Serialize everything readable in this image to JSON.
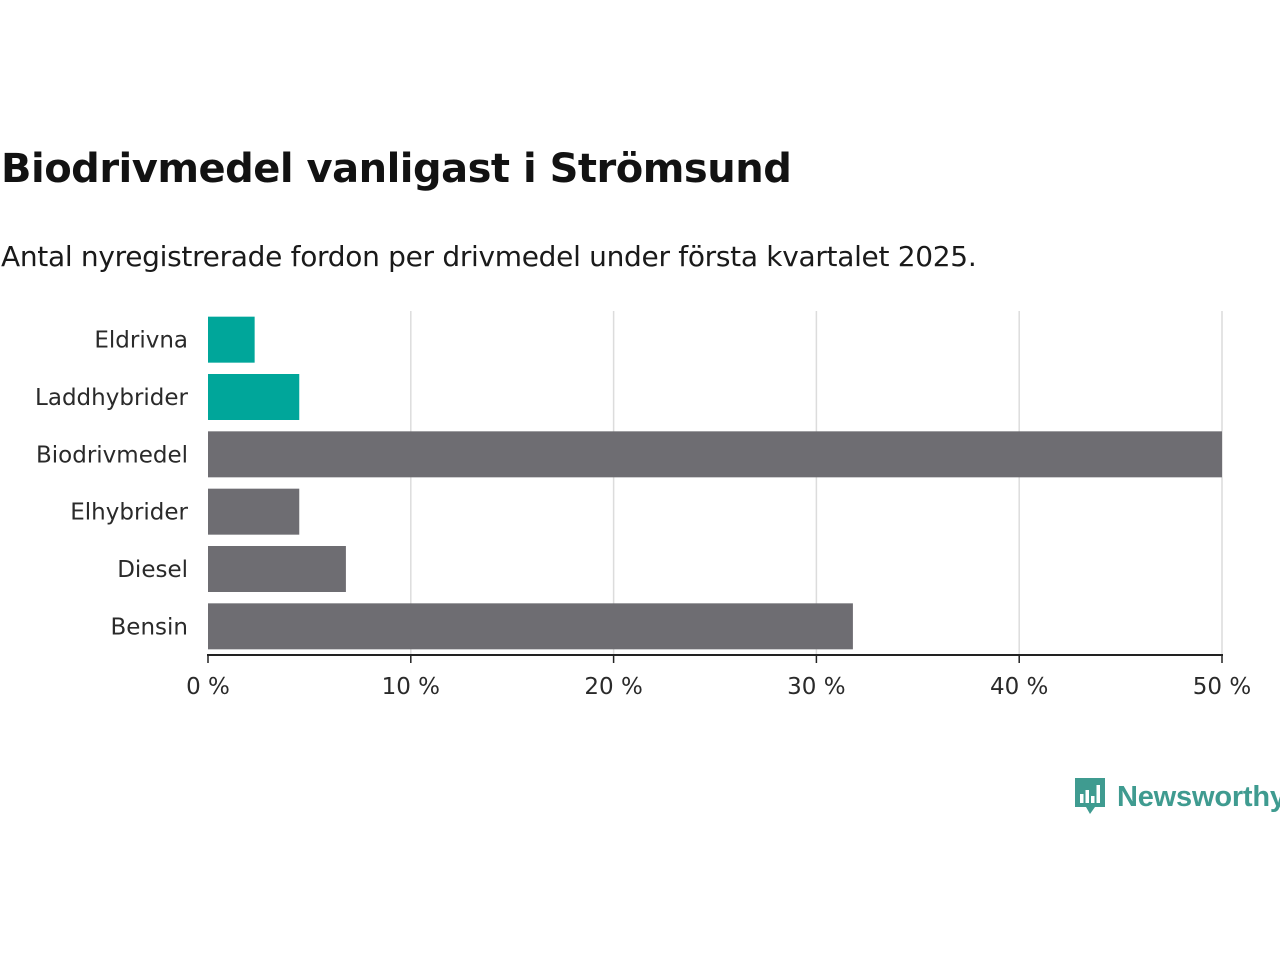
{
  "header": {
    "title": "Biodrivmedel vanligast i Strömsund",
    "subtitle": "Antal nyregistrerade fordon per drivmedel under första kvartalet 2025."
  },
  "chart_data": {
    "type": "bar",
    "orientation": "horizontal",
    "categories": [
      "Eldrivna",
      "Laddhybrider",
      "Biodrivmedel",
      "Elhybrider",
      "Diesel",
      "Bensin"
    ],
    "values": [
      2.3,
      4.5,
      50.0,
      4.5,
      6.8,
      31.8
    ],
    "bar_colors": [
      "#00a69a",
      "#00a69a",
      "#6e6d72",
      "#6e6d72",
      "#6e6d72",
      "#6e6d72"
    ],
    "x_ticks": [
      "0 %",
      "10 %",
      "20 %",
      "30 %",
      "40 %",
      "50 %"
    ],
    "xlim": [
      0,
      50
    ],
    "grid": "vertical"
  },
  "branding": {
    "logo_text": "Newsworthy",
    "logo_icon": "bar-chart-speech-bubble-icon",
    "color": "#3f9b90"
  }
}
